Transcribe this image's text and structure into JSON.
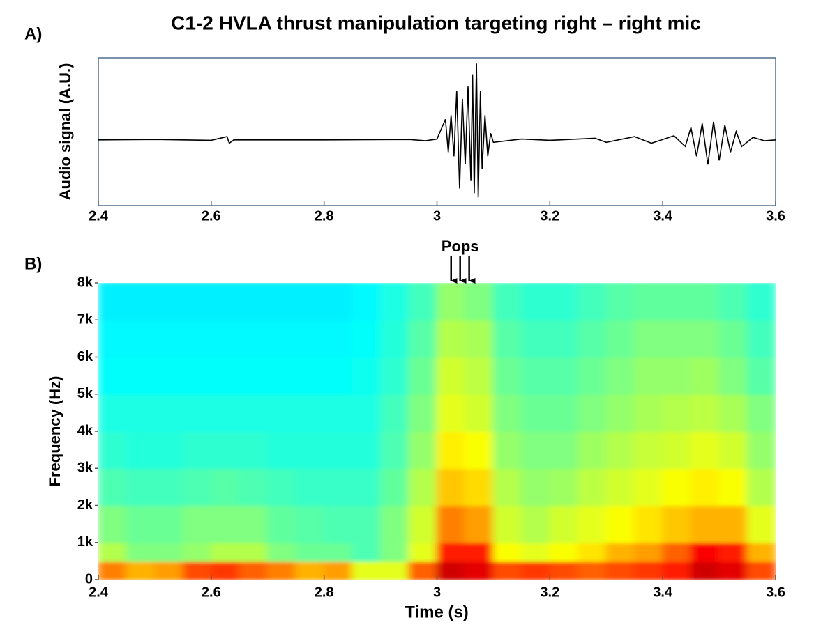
{
  "chart_data": [
    {
      "type": "line",
      "title": "C1-2 HVLA thrust manipulation targeting right – right mic",
      "panel_label": "A)",
      "ylabel": "Audio signal (A.U.)",
      "color": "#000000",
      "frame_color": "#4f6f8f",
      "x": [
        2.4,
        2.5,
        2.6,
        2.628,
        2.632,
        2.64,
        2.8,
        2.95,
        2.98,
        3.0,
        3.015,
        3.02,
        3.025,
        3.03,
        3.035,
        3.04,
        3.045,
        3.05,
        3.055,
        3.06,
        3.063,
        3.066,
        3.07,
        3.073,
        3.077,
        3.08,
        3.085,
        3.09,
        3.095,
        3.1,
        3.15,
        3.2,
        3.28,
        3.3,
        3.35,
        3.38,
        3.42,
        3.44,
        3.45,
        3.46,
        3.47,
        3.48,
        3.49,
        3.5,
        3.51,
        3.52,
        3.53,
        3.54,
        3.56,
        3.58,
        3.6
      ],
      "values": [
        0,
        0.005,
        -0.005,
        0.04,
        -0.04,
        0,
        0,
        0.005,
        -0.01,
        0.01,
        0.25,
        -0.15,
        0.3,
        -0.2,
        0.6,
        -0.59,
        0.5,
        -0.3,
        0.65,
        -0.5,
        0.8,
        -0.65,
        0.93,
        -0.7,
        0.6,
        -0.35,
        0.3,
        -0.2,
        0.08,
        -0.03,
        0.01,
        -0.005,
        0.02,
        -0.03,
        0.04,
        -0.04,
        0.05,
        -0.08,
        0.15,
        -0.2,
        0.2,
        -0.3,
        0.22,
        -0.25,
        0.18,
        -0.15,
        0.1,
        -0.08,
        0.03,
        -0.01,
        0
      ],
      "xlim": [
        2.4,
        3.6
      ],
      "xticks": [
        2.4,
        2.6,
        2.8,
        3,
        3.2,
        3.4,
        3.6
      ],
      "ylim": [
        -0.8,
        1
      ]
    },
    {
      "type": "heatmap",
      "panel_label": "B)",
      "xlabel": "Time (s)",
      "ylabel": "Frequency (Hz)",
      "colormap": "jet",
      "annotation": {
        "text": "Pops",
        "x": [
          3.025,
          3.041,
          3.057
        ]
      },
      "xlim": [
        2.4,
        3.6
      ],
      "xticks": [
        2.4,
        2.6,
        2.8,
        3,
        3.2,
        3.4,
        3.6
      ],
      "ylim": [
        0,
        8000
      ],
      "yticks": [
        0,
        {
          "value": 1000,
          "label": "1k"
        },
        {
          "value": 2000,
          "label": "2k"
        },
        {
          "value": 3000,
          "label": "3k"
        },
        {
          "value": 4000,
          "label": "4k"
        },
        {
          "value": 5000,
          "label": "5k"
        },
        {
          "value": 6000,
          "label": "6k"
        },
        {
          "value": 7000,
          "label": "7k"
        },
        {
          "value": 8000,
          "label": "8k"
        }
      ],
      "x_edges": [
        2.4,
        2.45,
        2.5,
        2.55,
        2.6,
        2.65,
        2.7,
        2.75,
        2.8,
        2.85,
        2.9,
        2.95,
        3.0,
        3.05,
        3.1,
        3.15,
        3.2,
        3.25,
        3.3,
        3.35,
        3.4,
        3.45,
        3.5,
        3.55,
        3.6
      ],
      "y_edges": [
        0,
        500,
        1000,
        2000,
        3000,
        4000,
        5000,
        6000,
        7000,
        8000
      ],
      "zlim": [
        0,
        1
      ],
      "z": [
        [
          0.75,
          0.7,
          0.72,
          0.8,
          0.82,
          0.78,
          0.75,
          0.7,
          0.72,
          0.6,
          0.6,
          0.78,
          0.92,
          0.9,
          0.8,
          0.82,
          0.8,
          0.78,
          0.8,
          0.82,
          0.85,
          0.92,
          0.9,
          0.8
        ],
        [
          0.55,
          0.5,
          0.5,
          0.52,
          0.55,
          0.55,
          0.5,
          0.48,
          0.48,
          0.45,
          0.5,
          0.6,
          0.85,
          0.85,
          0.62,
          0.6,
          0.62,
          0.65,
          0.7,
          0.72,
          0.78,
          0.88,
          0.85,
          0.7
        ],
        [
          0.5,
          0.48,
          0.48,
          0.5,
          0.5,
          0.5,
          0.47,
          0.46,
          0.45,
          0.45,
          0.5,
          0.58,
          0.75,
          0.72,
          0.58,
          0.55,
          0.58,
          0.6,
          0.62,
          0.65,
          0.68,
          0.7,
          0.7,
          0.6
        ],
        [
          0.45,
          0.44,
          0.44,
          0.45,
          0.46,
          0.45,
          0.44,
          0.43,
          0.43,
          0.43,
          0.47,
          0.55,
          0.68,
          0.66,
          0.55,
          0.52,
          0.53,
          0.56,
          0.58,
          0.6,
          0.62,
          0.64,
          0.62,
          0.55
        ],
        [
          0.42,
          0.41,
          0.41,
          0.42,
          0.42,
          0.42,
          0.41,
          0.41,
          0.41,
          0.41,
          0.45,
          0.52,
          0.64,
          0.62,
          0.52,
          0.5,
          0.5,
          0.53,
          0.55,
          0.57,
          0.58,
          0.6,
          0.58,
          0.52
        ],
        [
          0.4,
          0.4,
          0.4,
          0.4,
          0.4,
          0.4,
          0.4,
          0.4,
          0.4,
          0.4,
          0.44,
          0.5,
          0.6,
          0.58,
          0.5,
          0.48,
          0.48,
          0.5,
          0.52,
          0.54,
          0.55,
          0.56,
          0.54,
          0.5
        ],
        [
          0.38,
          0.38,
          0.38,
          0.38,
          0.38,
          0.38,
          0.38,
          0.38,
          0.38,
          0.39,
          0.42,
          0.48,
          0.58,
          0.56,
          0.48,
          0.46,
          0.46,
          0.48,
          0.5,
          0.52,
          0.52,
          0.53,
          0.5,
          0.46
        ],
        [
          0.37,
          0.37,
          0.37,
          0.37,
          0.37,
          0.37,
          0.37,
          0.37,
          0.37,
          0.38,
          0.41,
          0.46,
          0.55,
          0.54,
          0.46,
          0.44,
          0.44,
          0.46,
          0.48,
          0.5,
          0.5,
          0.5,
          0.48,
          0.44
        ],
        [
          0.36,
          0.36,
          0.36,
          0.36,
          0.36,
          0.36,
          0.36,
          0.36,
          0.36,
          0.37,
          0.4,
          0.44,
          0.52,
          0.5,
          0.44,
          0.42,
          0.42,
          0.44,
          0.46,
          0.47,
          0.47,
          0.47,
          0.45,
          0.42
        ]
      ]
    }
  ]
}
